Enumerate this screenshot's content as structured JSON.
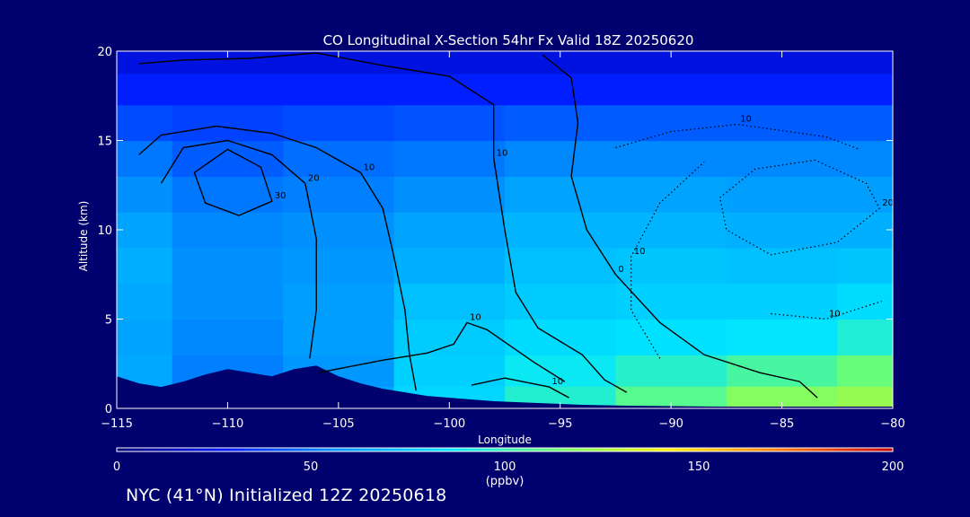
{
  "chart_data": {
    "type": "heatmap",
    "title": "CO Longitudinal X-Section 54hr  Fx Valid 18Z 20250620",
    "xlabel": "Longitude",
    "ylabel": "Altitude (km)",
    "xlim": [
      -115,
      -80
    ],
    "ylim": [
      0,
      20
    ],
    "x_ticks": [
      -115,
      -110,
      -105,
      -100,
      -95,
      -90,
      -85,
      -80
    ],
    "x_tick_labels": [
      "−115",
      "−110",
      "−105",
      "−100",
      "−95",
      "−90",
      "−85",
      "−80"
    ],
    "y_ticks": [
      0,
      5,
      10,
      15,
      20
    ],
    "x": [
      -115,
      -110,
      -105,
      -100,
      -95,
      -90,
      -85,
      -80
    ],
    "y": [
      0.5,
      2,
      4,
      6,
      8,
      10,
      12,
      14,
      16,
      18,
      19.5
    ],
    "values": [
      [
        68,
        60,
        62,
        80,
        95,
        108,
        118,
        122
      ],
      [
        64,
        52,
        58,
        78,
        88,
        96,
        104,
        112
      ],
      [
        62,
        54,
        60,
        76,
        82,
        84,
        86,
        94
      ],
      [
        64,
        56,
        60,
        72,
        76,
        78,
        78,
        82
      ],
      [
        66,
        56,
        58,
        66,
        72,
        74,
        72,
        74
      ],
      [
        62,
        54,
        56,
        62,
        68,
        68,
        66,
        66
      ],
      [
        56,
        50,
        52,
        56,
        62,
        62,
        60,
        60
      ],
      [
        50,
        44,
        48,
        50,
        54,
        54,
        54,
        54
      ],
      [
        40,
        38,
        40,
        42,
        44,
        44,
        44,
        44
      ],
      [
        30,
        30,
        30,
        30,
        30,
        30,
        30,
        30
      ],
      [
        22,
        22,
        22,
        22,
        22,
        22,
        22,
        22
      ]
    ],
    "contours": [
      {
        "label": "10",
        "style": "solid",
        "points": [
          [
            -114,
            19.3
          ],
          [
            -112,
            19.5
          ],
          [
            -109,
            19.6
          ],
          [
            -106,
            19.9
          ],
          [
            -103,
            19.2
          ],
          [
            -100,
            18.6
          ],
          [
            -98,
            17.0
          ],
          [
            -98,
            14.0
          ],
          [
            -97.5,
            10.0
          ],
          [
            -97,
            6.5
          ],
          [
            -96,
            4.5
          ],
          [
            -94,
            3.0
          ],
          [
            -93,
            1.6
          ],
          [
            -92,
            0.9
          ]
        ]
      },
      {
        "label": "10",
        "style": "solid",
        "points": [
          [
            -114,
            14.2
          ],
          [
            -113,
            15.3
          ],
          [
            -110.5,
            15.8
          ],
          [
            -108,
            15.4
          ],
          [
            -106,
            14.6
          ],
          [
            -104,
            13.2
          ],
          [
            -103,
            11.2
          ],
          [
            -102.5,
            8.5
          ],
          [
            -102,
            5.5
          ],
          [
            -101.8,
            3.0
          ],
          [
            -101.5,
            1.0
          ]
        ]
      },
      {
        "label": "20",
        "style": "solid",
        "points": [
          [
            -113,
            12.6
          ],
          [
            -112,
            14.6
          ],
          [
            -110,
            15.0
          ],
          [
            -108,
            14.2
          ],
          [
            -106.5,
            12.6
          ],
          [
            -106,
            9.5
          ],
          [
            -106,
            5.5
          ],
          [
            -106.3,
            2.8
          ]
        ]
      },
      {
        "label": "30",
        "style": "solid",
        "points": [
          [
            -111.5,
            13.2
          ],
          [
            -110,
            14.5
          ],
          [
            -108.5,
            13.5
          ],
          [
            -108,
            11.6
          ],
          [
            -109.5,
            10.8
          ],
          [
            -111,
            11.5
          ],
          [
            -111.5,
            13.2
          ]
        ]
      },
      {
        "label": "0",
        "style": "solid",
        "points": [
          [
            -95.8,
            19.8
          ],
          [
            -94.5,
            18.5
          ],
          [
            -94.2,
            16.0
          ],
          [
            -94.5,
            13.0
          ],
          [
            -93.8,
            10.0
          ],
          [
            -92.5,
            7.5
          ],
          [
            -90.5,
            4.8
          ],
          [
            -88.5,
            3.0
          ],
          [
            -86,
            2.0
          ],
          [
            -84.2,
            1.5
          ],
          [
            -83.4,
            0.6
          ]
        ]
      },
      {
        "label": "10",
        "style": "solid",
        "points": [
          [
            -99,
            1.3
          ],
          [
            -97.5,
            1.7
          ],
          [
            -95.5,
            1.2
          ],
          [
            -94.6,
            0.6
          ]
        ]
      },
      {
        "label": "10",
        "style": "solid",
        "points": [
          [
            -105.9,
            2.0
          ],
          [
            -103,
            2.7
          ],
          [
            -101,
            3.1
          ],
          [
            -99.8,
            3.6
          ],
          [
            -99.2,
            4.8
          ],
          [
            -98.3,
            4.4
          ],
          [
            -96.2,
            2.6
          ],
          [
            -94.8,
            1.5
          ]
        ]
      },
      {
        "label": "10",
        "style": "dotted",
        "points": [
          [
            -92.5,
            14.6
          ],
          [
            -90,
            15.5
          ],
          [
            -87,
            15.9
          ],
          [
            -83,
            15.2
          ],
          [
            -81.5,
            14.5
          ]
        ]
      },
      {
        "label": "20",
        "style": "dotted",
        "points": [
          [
            -87.8,
            11.8
          ],
          [
            -86.2,
            13.4
          ],
          [
            -83.5,
            13.9
          ],
          [
            -81.2,
            12.6
          ],
          [
            -80.6,
            11.2
          ],
          [
            -82.5,
            9.3
          ],
          [
            -85.5,
            8.6
          ],
          [
            -87.5,
            10.0
          ],
          [
            -87.8,
            11.8
          ]
        ]
      },
      {
        "label": "10",
        "style": "dotted",
        "points": [
          [
            -90.5,
            2.8
          ],
          [
            -91.8,
            5.5
          ],
          [
            -91.8,
            8.5
          ],
          [
            -90.5,
            11.5
          ],
          [
            -88.5,
            13.8
          ]
        ]
      },
      {
        "label": "10",
        "style": "dotted",
        "points": [
          [
            -85.5,
            5.3
          ],
          [
            -83,
            5.0
          ],
          [
            -80.5,
            6.0
          ]
        ]
      }
    ],
    "terrain": [
      [
        -115,
        1.8
      ],
      [
        -114,
        1.4
      ],
      [
        -113,
        1.2
      ],
      [
        -112,
        1.5
      ],
      [
        -111,
        1.9
      ],
      [
        -110,
        2.2
      ],
      [
        -109,
        2.0
      ],
      [
        -108,
        1.8
      ],
      [
        -107,
        2.2
      ],
      [
        -106,
        2.4
      ],
      [
        -105,
        1.8
      ],
      [
        -104,
        1.4
      ],
      [
        -103,
        1.1
      ],
      [
        -102,
        0.9
      ],
      [
        -101,
        0.7
      ],
      [
        -100,
        0.6
      ],
      [
        -98,
        0.4
      ],
      [
        -96,
        0.3
      ],
      [
        -94,
        0.2
      ],
      [
        -92,
        0.15
      ],
      [
        -88,
        0.1
      ],
      [
        -84,
        0.1
      ],
      [
        -80,
        0.1
      ]
    ],
    "colorbar": {
      "min": 0,
      "max": 200,
      "ticks": [
        0,
        50,
        100,
        150,
        200
      ],
      "tick_labels": [
        "0",
        "50",
        "100",
        "150",
        "200"
      ],
      "label": "(ppbv)",
      "colors": [
        "#00007a",
        "#0018ff",
        "#0096ff",
        "#00e6ff",
        "#70ff6e",
        "#ffee00",
        "#ff7800",
        "#c80000"
      ]
    }
  },
  "footer": {
    "text": "NYC (41°N) Initialized 12Z 20250618"
  }
}
